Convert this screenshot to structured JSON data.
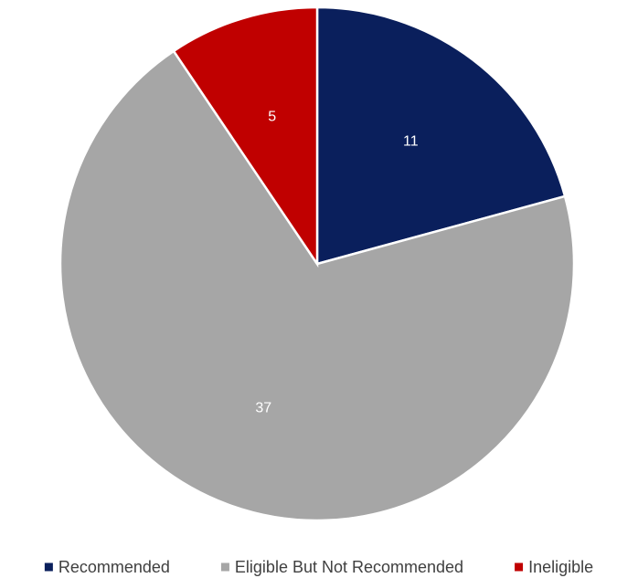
{
  "chart_data": {
    "type": "pie",
    "title": "",
    "slices": [
      {
        "label": "Recommended",
        "value": 11,
        "display": "11",
        "color": "#0a1f5c"
      },
      {
        "label": "Eligible But Not Recommended",
        "value": 37,
        "display": "37",
        "color": "#a6a6a6"
      },
      {
        "label": "Ineligible",
        "value": 5,
        "display": "5",
        "color": "#c00000"
      }
    ],
    "start_angle_deg": 0,
    "direction": "clockwise",
    "data_labels": true,
    "legend_position": "bottom"
  }
}
